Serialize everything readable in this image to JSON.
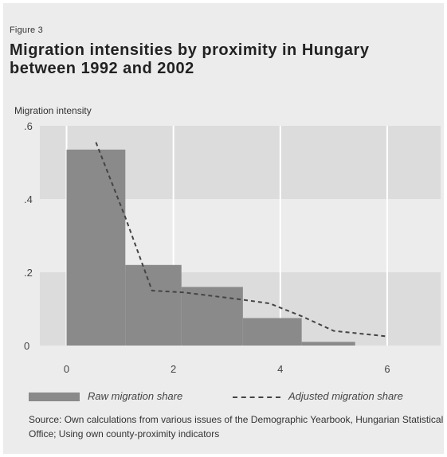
{
  "figure_label": "Figure 3",
  "title": "Migration intensities by proximity in Hungary between 1992 and 2002",
  "ylabel": "Migration intensity",
  "legend": {
    "raw_label": "Raw migration share",
    "adjusted_label": "Adjusted migration share"
  },
  "source": "Source: Own calculations from various issues of the Demographic Yearbook, Hungarian Statistical Office; Using own county-proximity indicators",
  "colors": {
    "panel_bg": "#ececec",
    "band": "#dcdcdc",
    "bar": "#8a8a8a",
    "line": "#444444",
    "grid": "#ffffff"
  },
  "chart_data": {
    "type": "bar",
    "xlim": [
      -0.5,
      7
    ],
    "ylim": [
      0,
      0.6
    ],
    "xticks": [
      0,
      2,
      4,
      6
    ],
    "xtick_labels": [
      "0",
      "2",
      "4",
      "6"
    ],
    "yticks": [
      0,
      0.2,
      0.4,
      0.6
    ],
    "ytick_labels": [
      "0",
      ".2",
      ".4",
      ".6"
    ],
    "grid": true,
    "legend_position": "bottom",
    "series": [
      {
        "name": "Raw migration share",
        "kind": "histogram",
        "bins": [
          {
            "x0": 0,
            "x1": 1.1,
            "value": 0.535
          },
          {
            "x0": 1.1,
            "x1": 2.15,
            "value": 0.22
          },
          {
            "x0": 2.15,
            "x1": 3.3,
            "value": 0.16
          },
          {
            "x0": 3.3,
            "x1": 4.4,
            "value": 0.075
          },
          {
            "x0": 4.4,
            "x1": 5.4,
            "value": 0.01
          }
        ]
      },
      {
        "name": "Adjusted migration share",
        "kind": "line",
        "style": "dashed",
        "x": [
          0.55,
          1.1,
          1.6,
          2.2,
          3.3,
          3.8,
          4.4,
          5.0,
          6.0
        ],
        "y": [
          0.555,
          0.35,
          0.15,
          0.145,
          0.125,
          0.115,
          0.08,
          0.04,
          0.025
        ]
      }
    ]
  }
}
